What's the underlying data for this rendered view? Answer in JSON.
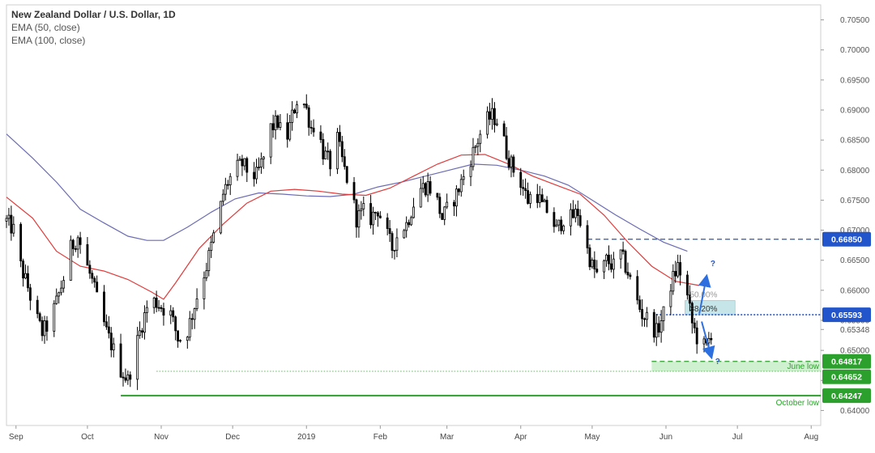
{
  "legend": {
    "title": "New Zealand Dollar / U.S. Dollar, 1D",
    "ema50": "EMA (50, close)",
    "ema100": "EMA (100, close)"
  },
  "colors": {
    "ema50": "#e03a3a",
    "ema100": "#6b6bb3",
    "resistance": "#2255cc",
    "support": "#2ca02c",
    "candle": "#000000"
  },
  "chart_data": {
    "type": "candlestick",
    "title": "New Zealand Dollar / U.S. Dollar, 1D",
    "ylim": [
      0.6375,
      0.7075
    ],
    "y_ticks": [
      "0.64000",
      "0.64500",
      "0.65000",
      "0.65348",
      "0.65500",
      "0.66000",
      "0.66500",
      "0.67000",
      "0.67500",
      "0.68000",
      "0.68500",
      "0.69000",
      "0.69500",
      "0.70000",
      "0.70500"
    ],
    "x_ticks": [
      {
        "label": "Sep",
        "day": -37
      },
      {
        "label": "Oct",
        "day": -7
      },
      {
        "label": "Nov",
        "day": 24
      },
      {
        "label": "Dec",
        "day": 54
      },
      {
        "label": "2019",
        "day": 85
      },
      {
        "label": "Feb",
        "day": 116
      },
      {
        "label": "Mar",
        "day": 144
      },
      {
        "label": "Apr",
        "day": 175
      },
      {
        "label": "May",
        "day": 205
      },
      {
        "label": "Jun",
        "day": 236
      },
      {
        "label": "Jul",
        "day": 266
      },
      {
        "label": "Aug",
        "day": 297
      }
    ],
    "x_range": [
      -41,
      301
    ],
    "close_path": [
      [
        -41,
        0.6715
      ],
      [
        -38,
        0.67
      ],
      [
        -35,
        0.664
      ],
      [
        -32,
        0.6605
      ],
      [
        -29,
        0.656
      ],
      [
        -26,
        0.653
      ],
      [
        -23,
        0.6545
      ],
      [
        -20,
        0.658
      ],
      [
        -17,
        0.662
      ],
      [
        -14,
        0.667
      ],
      [
        -11,
        0.669
      ],
      [
        -8,
        0.665
      ],
      [
        -5,
        0.6615
      ],
      [
        -2,
        0.657
      ],
      [
        1,
        0.653
      ],
      [
        4,
        0.65
      ],
      [
        7,
        0.6468
      ],
      [
        10,
        0.645
      ],
      [
        13,
        0.65
      ],
      [
        16,
        0.6545
      ],
      [
        19,
        0.6585
      ],
      [
        22,
        0.658
      ],
      [
        25,
        0.657
      ],
      [
        28,
        0.656
      ],
      [
        31,
        0.652
      ],
      [
        34,
        0.652
      ],
      [
        37,
        0.656
      ],
      [
        40,
        0.6605
      ],
      [
        43,
        0.664
      ],
      [
        46,
        0.669
      ],
      [
        48,
        0.672
      ],
      [
        50,
        0.676
      ],
      [
        52,
        0.678
      ],
      [
        55,
        0.68
      ],
      [
        58,
        0.681
      ],
      [
        61,
        0.6795
      ],
      [
        64,
        0.679
      ],
      [
        67,
        0.682
      ],
      [
        70,
        0.687
      ],
      [
        73,
        0.688
      ],
      [
        76,
        0.684
      ],
      [
        79,
        0.689
      ],
      [
        82,
        0.693
      ],
      [
        85,
        0.69
      ],
      [
        87,
        0.687
      ],
      [
        89,
        0.688
      ],
      [
        92,
        0.683
      ],
      [
        95,
        0.681
      ],
      [
        98,
        0.685
      ],
      [
        101,
        0.68
      ],
      [
        104,
        0.676
      ],
      [
        106,
        0.672
      ],
      [
        109,
        0.673
      ],
      [
        112,
        0.672
      ],
      [
        115,
        0.6735
      ],
      [
        118,
        0.67
      ],
      [
        121,
        0.667
      ],
      [
        124,
        0.67
      ],
      [
        127,
        0.671
      ],
      [
        130,
        0.6745
      ],
      [
        133,
        0.677
      ],
      [
        136,
        0.6775
      ],
      [
        139,
        0.676
      ],
      [
        142,
        0.672
      ],
      [
        145,
        0.674
      ],
      [
        148,
        0.676
      ],
      [
        151,
        0.679
      ],
      [
        154,
        0.682
      ],
      [
        157,
        0.685
      ],
      [
        160,
        0.688
      ],
      [
        163,
        0.689
      ],
      [
        166,
        0.688
      ],
      [
        169,
        0.683
      ],
      [
        172,
        0.68
      ],
      [
        175,
        0.678
      ],
      [
        178,
        0.675
      ],
      [
        181,
        0.677
      ],
      [
        184,
        0.674
      ],
      [
        187,
        0.673
      ],
      [
        190,
        0.67
      ],
      [
        193,
        0.672
      ],
      [
        196,
        0.672
      ],
      [
        199,
        0.673
      ],
      [
        202,
        0.668
      ],
      [
        205,
        0.664
      ],
      [
        208,
        0.662
      ],
      [
        211,
        0.665
      ],
      [
        214,
        0.664
      ],
      [
        217,
        0.666
      ],
      [
        220,
        0.663
      ],
      [
        223,
        0.659
      ],
      [
        226,
        0.656
      ],
      [
        229,
        0.655
      ],
      [
        232,
        0.653
      ],
      [
        235,
        0.656
      ],
      [
        238,
        0.661
      ],
      [
        241,
        0.664
      ],
      [
        244,
        0.661
      ],
      [
        247,
        0.6545
      ],
      [
        250,
        0.651
      ],
      [
        253,
        0.6505
      ],
      [
        255,
        0.653
      ]
    ],
    "volatility": 0.003,
    "ema50": [
      [
        -41,
        0.6755
      ],
      [
        -30,
        0.672
      ],
      [
        -20,
        0.6665
      ],
      [
        -10,
        0.664
      ],
      [
        0,
        0.6632
      ],
      [
        10,
        0.6618
      ],
      [
        20,
        0.6597
      ],
      [
        25,
        0.6585
      ],
      [
        30,
        0.6612
      ],
      [
        40,
        0.667
      ],
      [
        50,
        0.671
      ],
      [
        60,
        0.6745
      ],
      [
        70,
        0.6765
      ],
      [
        80,
        0.6768
      ],
      [
        90,
        0.6765
      ],
      [
        100,
        0.676
      ],
      [
        110,
        0.6758
      ],
      [
        120,
        0.677
      ],
      [
        130,
        0.679
      ],
      [
        140,
        0.681
      ],
      [
        150,
        0.6825
      ],
      [
        160,
        0.6826
      ],
      [
        170,
        0.681
      ],
      [
        180,
        0.679
      ],
      [
        190,
        0.6775
      ],
      [
        200,
        0.676
      ],
      [
        210,
        0.6725
      ],
      [
        220,
        0.668
      ],
      [
        230,
        0.664
      ],
      [
        240,
        0.6615
      ],
      [
        250,
        0.6608
      ]
    ],
    "ema100": [
      [
        -41,
        0.686
      ],
      [
        -30,
        0.682
      ],
      [
        -20,
        0.678
      ],
      [
        -10,
        0.6735
      ],
      [
        0,
        0.6712
      ],
      [
        10,
        0.669
      ],
      [
        18,
        0.6683
      ],
      [
        25,
        0.6683
      ],
      [
        35,
        0.6705
      ],
      [
        45,
        0.673
      ],
      [
        55,
        0.6752
      ],
      [
        65,
        0.6762
      ],
      [
        75,
        0.676
      ],
      [
        85,
        0.6757
      ],
      [
        95,
        0.6756
      ],
      [
        105,
        0.676
      ],
      [
        115,
        0.6772
      ],
      [
        125,
        0.678
      ],
      [
        135,
        0.679
      ],
      [
        145,
        0.68
      ],
      [
        155,
        0.681
      ],
      [
        165,
        0.6808
      ],
      [
        175,
        0.68
      ],
      [
        185,
        0.679
      ],
      [
        195,
        0.6775
      ],
      [
        205,
        0.675
      ],
      [
        215,
        0.6725
      ],
      [
        225,
        0.6702
      ],
      [
        235,
        0.668
      ],
      [
        245,
        0.6665
      ]
    ],
    "levels": [
      {
        "label": "0.66850",
        "value": 0.6685,
        "color": "#2255cc",
        "style": "dashed",
        "from_day": 203,
        "to_day": 301
      },
      {
        "label": "0.65593",
        "value": 0.65593,
        "color": "#2255cc",
        "style": "dotted",
        "from_day": 232,
        "to_day": 301
      },
      {
        "label": "0.64817",
        "value": 0.64817,
        "color": "#2ca02c",
        "style": "dashed",
        "from_day": 230,
        "to_day": 301
      },
      {
        "label": "0.64652",
        "value": 0.64652,
        "color": "#2ca02c",
        "style": "dotted",
        "from_day": 22,
        "to_day": 301
      },
      {
        "label": "0.64247",
        "value": 0.64247,
        "color": "#2ca02c",
        "style": "solid",
        "from_day": 7,
        "to_day": 301
      }
    ],
    "fib_zone": {
      "from_day": 244,
      "to_day": 265,
      "low": 0.65593,
      "high": 0.6583
    },
    "june_low_zone": {
      "from_day": 230,
      "to_day": 301,
      "low": 0.64652,
      "high": 0.64817
    },
    "annotations": {
      "fib50": "50.00%",
      "fib382": "38.20%",
      "june_low": "June low",
      "october_low": "October low",
      "q_up": "?",
      "q_down": "?"
    }
  }
}
